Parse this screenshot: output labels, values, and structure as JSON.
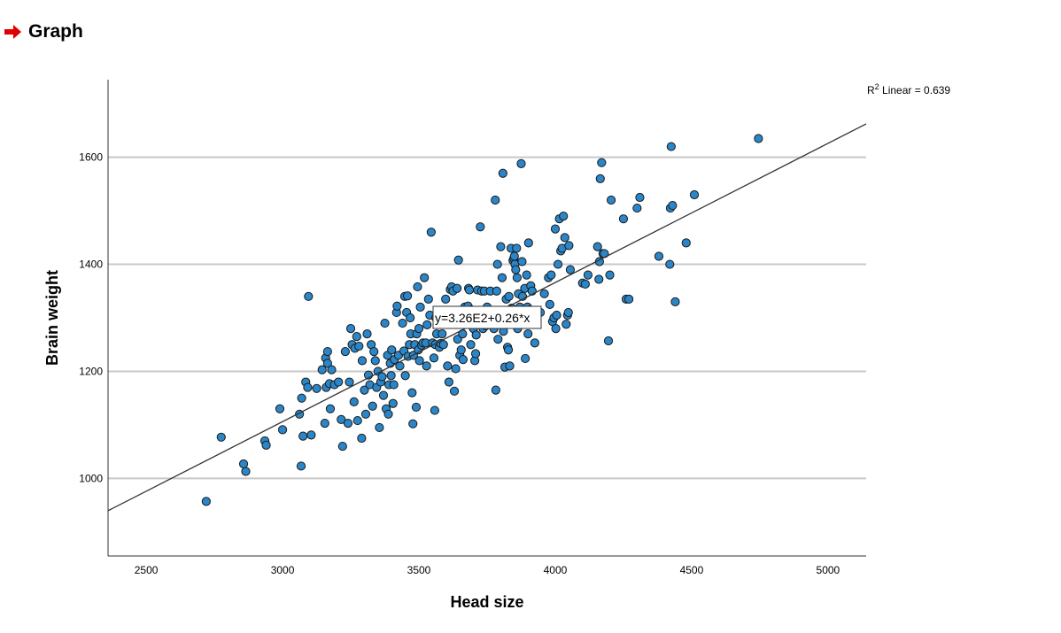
{
  "header": {
    "title": "Graph",
    "icon": "right-arrow-icon",
    "icon_color": "#e00000"
  },
  "chart_data": {
    "type": "scatter",
    "xlabel": "Head size",
    "ylabel": "Brain weight",
    "xlim": [
      2360,
      5140
    ],
    "ylim": [
      855,
      1745
    ],
    "xticks": [
      2500,
      3000,
      3500,
      4000,
      4500,
      5000
    ],
    "yticks": [
      1000,
      1200,
      1400,
      1600
    ],
    "grid": "horizontal",
    "fit_line": {
      "intercept": 326,
      "slope": 0.26,
      "equation_label": "y=3.26E2+0.26*x",
      "r2_prefix": "R",
      "r2_sup": "2",
      "r2_suffix": " Linear = 0.639"
    },
    "colors": {
      "point_fill": "#2a86c8",
      "point_stroke": "#1a1a1a",
      "line": "#333333",
      "grid": "#c8c8c8"
    },
    "points": [
      [
        2720,
        957
      ],
      [
        2775,
        1077
      ],
      [
        2857,
        1027
      ],
      [
        2865,
        1013
      ],
      [
        2935,
        1070
      ],
      [
        2940,
        1062
      ],
      [
        2990,
        1130
      ],
      [
        3000,
        1091
      ],
      [
        3062,
        1120
      ],
      [
        3070,
        1150
      ],
      [
        3068,
        1023
      ],
      [
        3075,
        1079
      ],
      [
        3085,
        1180
      ],
      [
        3092,
        1170
      ],
      [
        3095,
        1340
      ],
      [
        3105,
        1081
      ],
      [
        3125,
        1168
      ],
      [
        3145,
        1203
      ],
      [
        3155,
        1103
      ],
      [
        3158,
        1225
      ],
      [
        3160,
        1170
      ],
      [
        3165,
        1237
      ],
      [
        3165,
        1215
      ],
      [
        3172,
        1177
      ],
      [
        3175,
        1130
      ],
      [
        3180,
        1203
      ],
      [
        3190,
        1175
      ],
      [
        3205,
        1180
      ],
      [
        3215,
        1110
      ],
      [
        3220,
        1060
      ],
      [
        3230,
        1237
      ],
      [
        3240,
        1103
      ],
      [
        3245,
        1180
      ],
      [
        3250,
        1280
      ],
      [
        3255,
        1250
      ],
      [
        3262,
        1143
      ],
      [
        3265,
        1243
      ],
      [
        3272,
        1265
      ],
      [
        3275,
        1108
      ],
      [
        3280,
        1247
      ],
      [
        3290,
        1075
      ],
      [
        3292,
        1220
      ],
      [
        3300,
        1165
      ],
      [
        3305,
        1120
      ],
      [
        3310,
        1270
      ],
      [
        3315,
        1193
      ],
      [
        3320,
        1175
      ],
      [
        3325,
        1250
      ],
      [
        3330,
        1135
      ],
      [
        3335,
        1237
      ],
      [
        3340,
        1220
      ],
      [
        3345,
        1170
      ],
      [
        3350,
        1200
      ],
      [
        3355,
        1095
      ],
      [
        3360,
        1180
      ],
      [
        3365,
        1190
      ],
      [
        3370,
        1155
      ],
      [
        3375,
        1290
      ],
      [
        3380,
        1130
      ],
      [
        3385,
        1230
      ],
      [
        3388,
        1120
      ],
      [
        3390,
        1175
      ],
      [
        3395,
        1215
      ],
      [
        3398,
        1192
      ],
      [
        3400,
        1240
      ],
      [
        3405,
        1140
      ],
      [
        3408,
        1175
      ],
      [
        3410,
        1222
      ],
      [
        3418,
        1310
      ],
      [
        3420,
        1322
      ],
      [
        3425,
        1230
      ],
      [
        3430,
        1210
      ],
      [
        3440,
        1290
      ],
      [
        3445,
        1238
      ],
      [
        3448,
        1340
      ],
      [
        3450,
        1192
      ],
      [
        3455,
        1310
      ],
      [
        3458,
        1341
      ],
      [
        3460,
        1228
      ],
      [
        3465,
        1250
      ],
      [
        3468,
        1300
      ],
      [
        3470,
        1270
      ],
      [
        3475,
        1160
      ],
      [
        3478,
        1102
      ],
      [
        3480,
        1230
      ],
      [
        3485,
        1250
      ],
      [
        3490,
        1133
      ],
      [
        3492,
        1270
      ],
      [
        3495,
        1358
      ],
      [
        3498,
        1240
      ],
      [
        3500,
        1280
      ],
      [
        3502,
        1220
      ],
      [
        3505,
        1320
      ],
      [
        3510,
        1249
      ],
      [
        3515,
        1253
      ],
      [
        3520,
        1375
      ],
      [
        3525,
        1253
      ],
      [
        3528,
        1210
      ],
      [
        3530,
        1287
      ],
      [
        3535,
        1335
      ],
      [
        3540,
        1305
      ],
      [
        3545,
        1460
      ],
      [
        3550,
        1253
      ],
      [
        3555,
        1225
      ],
      [
        3558,
        1127
      ],
      [
        3560,
        1250
      ],
      [
        3562,
        1300
      ],
      [
        3565,
        1270
      ],
      [
        3570,
        1310
      ],
      [
        3575,
        1245
      ],
      [
        3580,
        1252
      ],
      [
        3585,
        1270
      ],
      [
        3590,
        1250
      ],
      [
        3598,
        1335
      ],
      [
        3600,
        1290
      ],
      [
        3605,
        1210
      ],
      [
        3610,
        1180
      ],
      [
        3615,
        1353
      ],
      [
        3620,
        1358
      ],
      [
        3625,
        1350
      ],
      [
        3630,
        1163
      ],
      [
        3635,
        1205
      ],
      [
        3640,
        1355
      ],
      [
        3642,
        1260
      ],
      [
        3645,
        1408
      ],
      [
        3650,
        1230
      ],
      [
        3655,
        1240
      ],
      [
        3660,
        1270
      ],
      [
        3662,
        1222
      ],
      [
        3665,
        1300
      ],
      [
        3668,
        1320
      ],
      [
        3670,
        1290
      ],
      [
        3680,
        1322
      ],
      [
        3682,
        1355
      ],
      [
        3685,
        1352
      ],
      [
        3690,
        1250
      ],
      [
        3692,
        1315
      ],
      [
        3700,
        1280
      ],
      [
        3705,
        1220
      ],
      [
        3708,
        1233
      ],
      [
        3710,
        1268
      ],
      [
        3715,
        1352
      ],
      [
        3722,
        1292
      ],
      [
        3725,
        1470
      ],
      [
        3730,
        1350
      ],
      [
        3735,
        1280
      ],
      [
        3740,
        1350
      ],
      [
        3745,
        1285
      ],
      [
        3750,
        1320
      ],
      [
        3760,
        1295
      ],
      [
        3762,
        1350
      ],
      [
        3770,
        1290
      ],
      [
        3775,
        1280
      ],
      [
        3780,
        1520
      ],
      [
        3782,
        1165
      ],
      [
        3785,
        1350
      ],
      [
        3788,
        1400
      ],
      [
        3790,
        1260
      ],
      [
        3795,
        1290
      ],
      [
        3800,
        1433
      ],
      [
        3805,
        1375
      ],
      [
        3808,
        1570
      ],
      [
        3810,
        1275
      ],
      [
        3815,
        1208
      ],
      [
        3820,
        1335
      ],
      [
        3825,
        1245
      ],
      [
        3828,
        1240
      ],
      [
        3830,
        1340
      ],
      [
        3833,
        1210
      ],
      [
        3838,
        1430
      ],
      [
        3840,
        1318
      ],
      [
        3845,
        1407
      ],
      [
        3848,
        1411
      ],
      [
        3850,
        1415
      ],
      [
        3852,
        1400
      ],
      [
        3855,
        1390
      ],
      [
        3858,
        1430
      ],
      [
        3860,
        1375
      ],
      [
        3862,
        1280
      ],
      [
        3865,
        1345
      ],
      [
        3870,
        1320
      ],
      [
        3875,
        1588
      ],
      [
        3878,
        1405
      ],
      [
        3880,
        1340
      ],
      [
        3885,
        1300
      ],
      [
        3888,
        1355
      ],
      [
        3890,
        1224
      ],
      [
        3895,
        1380
      ],
      [
        3898,
        1320
      ],
      [
        3900,
        1270
      ],
      [
        3902,
        1440
      ],
      [
        3905,
        1315
      ],
      [
        3910,
        1360
      ],
      [
        3915,
        1350
      ],
      [
        3925,
        1253
      ],
      [
        3930,
        1300
      ],
      [
        3945,
        1310
      ],
      [
        3960,
        1345
      ],
      [
        3975,
        1375
      ],
      [
        3980,
        1325
      ],
      [
        3985,
        1380
      ],
      [
        3990,
        1293
      ],
      [
        3995,
        1300
      ],
      [
        4000,
        1466
      ],
      [
        4002,
        1280
      ],
      [
        4005,
        1305
      ],
      [
        4010,
        1400
      ],
      [
        4015,
        1485
      ],
      [
        4020,
        1425
      ],
      [
        4025,
        1430
      ],
      [
        4030,
        1490
      ],
      [
        4035,
        1450
      ],
      [
        4040,
        1288
      ],
      [
        4045,
        1305
      ],
      [
        4048,
        1310
      ],
      [
        4050,
        1435
      ],
      [
        4055,
        1390
      ],
      [
        4100,
        1365
      ],
      [
        4110,
        1363
      ],
      [
        4120,
        1380
      ],
      [
        4155,
        1433
      ],
      [
        4160,
        1372
      ],
      [
        4162,
        1405
      ],
      [
        4165,
        1560
      ],
      [
        4170,
        1590
      ],
      [
        4175,
        1420
      ],
      [
        4180,
        1420
      ],
      [
        4195,
        1257
      ],
      [
        4200,
        1380
      ],
      [
        4205,
        1520
      ],
      [
        4250,
        1485
      ],
      [
        4260,
        1335
      ],
      [
        4270,
        1335
      ],
      [
        4300,
        1505
      ],
      [
        4310,
        1525
      ],
      [
        4380,
        1415
      ],
      [
        4420,
        1400
      ],
      [
        4422,
        1505
      ],
      [
        4425,
        1620
      ],
      [
        4430,
        1510
      ],
      [
        4440,
        1330
      ],
      [
        4480,
        1440
      ],
      [
        4510,
        1530
      ],
      [
        4745,
        1635
      ]
    ]
  }
}
